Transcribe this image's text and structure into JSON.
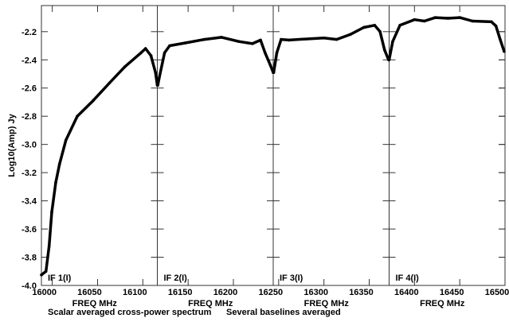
{
  "chart_data": {
    "type": "line",
    "ylabel": "Log10(Amp) Jy",
    "xlabel": "FREQ MHz",
    "footer_left": "Scalar averaged cross-power spectrum",
    "footer_right": "Several baselines averaged",
    "xlim": [
      15988,
      16500
    ],
    "ylim": [
      -4.0,
      -2.015
    ],
    "yticks": [
      -2.2,
      -2.4,
      -2.6,
      -2.8,
      -3.0,
      -3.2,
      -3.4,
      -3.6,
      -3.8,
      -4.0
    ],
    "ytick_labels": [
      "-2.2",
      "-2.4",
      "-2.6",
      "-2.8",
      "-3.0",
      "-3.2",
      "-3.4",
      "-3.6",
      "-3.8",
      "-4.0"
    ],
    "grid": false,
    "panels": [
      {
        "label": "IF 1(I)",
        "xlabel": "FREQ MHz",
        "range": [
          15988,
          16116
        ],
        "xticks": [
          16000,
          16050,
          16100
        ],
        "xtick_labels": [
          "16000",
          "16050",
          "16100"
        ]
      },
      {
        "label": "IF 2(I)",
        "xlabel": "FREQ MHz",
        "range": [
          16116,
          16244
        ],
        "xticks": [
          16150,
          16200
        ],
        "xtick_labels": [
          "16150",
          "16200"
        ]
      },
      {
        "label": "IF 3(I)",
        "xlabel": "FREQ MHz",
        "range": [
          16244,
          16372
        ],
        "xticks": [
          16250,
          16300,
          16350
        ],
        "xtick_labels": [
          "16250",
          "16300",
          "16350"
        ]
      },
      {
        "label": "IF 4(I)",
        "xlabel": "FREQ MHz",
        "range": [
          16372,
          16500
        ],
        "xticks": [
          16400,
          16450,
          16500
        ],
        "xtick_labels": [
          "16400",
          "16450",
          "16500"
        ]
      }
    ],
    "series": [
      {
        "name": "IF 1(I)",
        "x": [
          15988,
          15993,
          15996.5,
          15999.4,
          16003.8,
          16008,
          16015,
          16027.6,
          16045,
          16063,
          16080,
          16098,
          16103,
          16109,
          16114,
          16116
        ],
        "y": [
          -3.925,
          -3.9,
          -3.72,
          -3.48,
          -3.27,
          -3.14,
          -2.97,
          -2.8,
          -2.69,
          -2.565,
          -2.45,
          -2.35,
          -2.32,
          -2.37,
          -2.49,
          -2.58
        ]
      },
      {
        "name": "IF 2(I)",
        "x": [
          16116.5,
          16118,
          16124,
          16129.6,
          16147,
          16168,
          16187,
          16206,
          16221,
          16230,
          16235,
          16241,
          16244
        ],
        "y": [
          -2.58,
          -2.53,
          -2.35,
          -2.3,
          -2.28,
          -2.255,
          -2.24,
          -2.27,
          -2.285,
          -2.26,
          -2.35,
          -2.44,
          -2.49
        ]
      },
      {
        "name": "IF 3(I)",
        "x": [
          16244.5,
          16248,
          16252.7,
          16261.5,
          16285,
          16300,
          16314,
          16329,
          16344,
          16356,
          16362,
          16367,
          16371.5
        ],
        "y": [
          -2.49,
          -2.35,
          -2.255,
          -2.26,
          -2.25,
          -2.245,
          -2.255,
          -2.22,
          -2.17,
          -2.155,
          -2.2,
          -2.33,
          -2.4
        ]
      },
      {
        "name": "IF 4(I)",
        "x": [
          16372,
          16376,
          16384,
          16400,
          16411,
          16423,
          16437,
          16450,
          16464,
          16485,
          16490,
          16494.6,
          16499
        ],
        "y": [
          -2.4,
          -2.27,
          -2.155,
          -2.115,
          -2.125,
          -2.1,
          -2.105,
          -2.1,
          -2.125,
          -2.13,
          -2.16,
          -2.255,
          -2.34
        ]
      }
    ]
  }
}
